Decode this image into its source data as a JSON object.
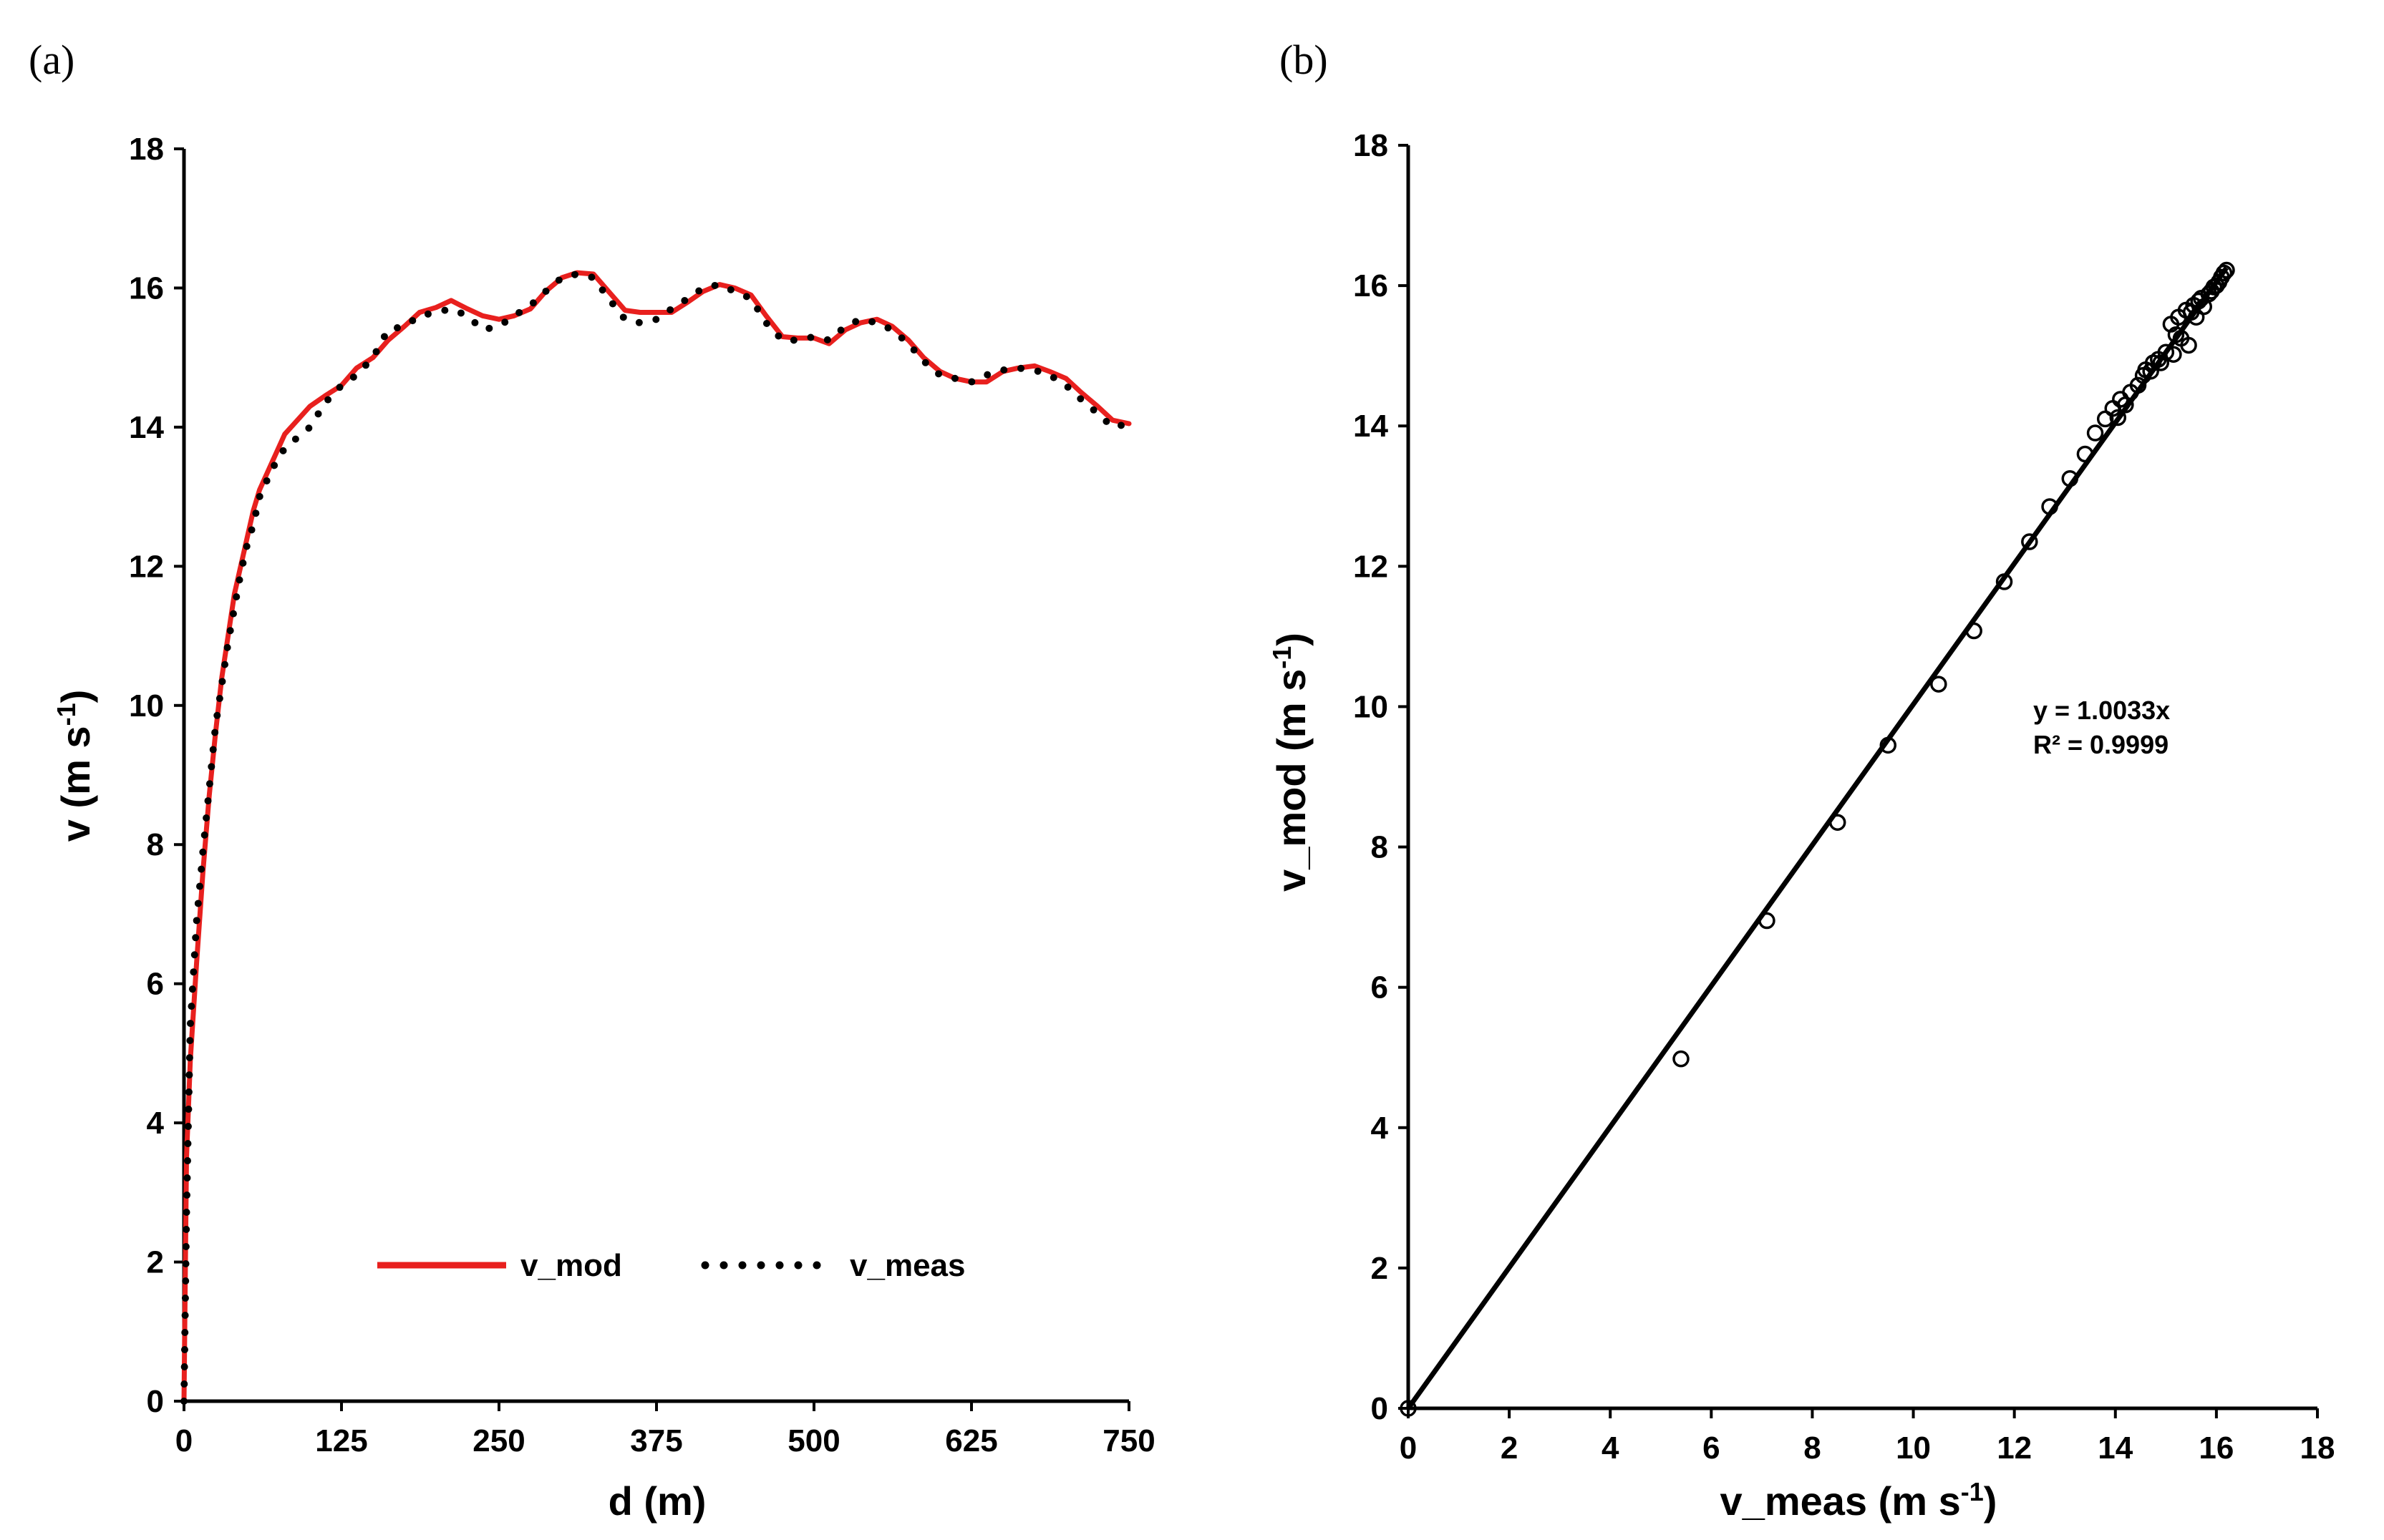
{
  "chart_data": [
    {
      "panel_label": "(a)",
      "type": "line",
      "xlabel": "d (m)",
      "ylabel": "v (m s-1)",
      "ylabel_main": "v (m s",
      "ylabel_sup": "-1",
      "ylabel_end": ")",
      "xlim": [
        0,
        750
      ],
      "ylim": [
        0,
        18
      ],
      "xticks": [
        0,
        125,
        250,
        375,
        500,
        625,
        750
      ],
      "yticks": [
        0,
        2,
        4,
        6,
        8,
        10,
        12,
        14,
        16,
        18
      ],
      "legend_position": "bottom-center",
      "series": [
        {
          "name": "v_mod",
          "style": "solid",
          "color": "#e8201e",
          "x": [
            0,
            2,
            5,
            10,
            15,
            20,
            25,
            30,
            35,
            40,
            45,
            50,
            55,
            60,
            70,
            80,
            90,
            100,
            112,
            125,
            137,
            150,
            162,
            175,
            187,
            200,
            212,
            225,
            237,
            250,
            262,
            275,
            287,
            300,
            312,
            325,
            337,
            350,
            362,
            375,
            387,
            400,
            412,
            425,
            437,
            450,
            462,
            475,
            487,
            500,
            512,
            525,
            537,
            550,
            562,
            575,
            587,
            600,
            612,
            625,
            637,
            650,
            662,
            675,
            687,
            700,
            712,
            725,
            737,
            750
          ],
          "y": [
            0,
            3.5,
            4.9,
            6.3,
            7.6,
            8.7,
            9.6,
            10.4,
            11.0,
            11.6,
            12.0,
            12.4,
            12.8,
            13.1,
            13.5,
            13.9,
            14.1,
            14.3,
            14.45,
            14.6,
            14.85,
            15.0,
            15.25,
            15.45,
            15.65,
            15.72,
            15.82,
            15.7,
            15.6,
            15.55,
            15.6,
            15.7,
            15.95,
            16.15,
            16.22,
            16.2,
            15.95,
            15.68,
            15.65,
            15.65,
            15.65,
            15.8,
            15.95,
            16.05,
            16.0,
            15.9,
            15.6,
            15.3,
            15.28,
            15.28,
            15.2,
            15.4,
            15.5,
            15.55,
            15.45,
            15.25,
            15.0,
            14.8,
            14.7,
            14.65,
            14.65,
            14.8,
            14.85,
            14.88,
            14.8,
            14.7,
            14.5,
            14.3,
            14.1,
            14.05
          ]
        },
        {
          "name": "v_meas",
          "style": "dotted",
          "color": "#000000",
          "x": [
            0,
            2,
            5,
            10,
            15,
            20,
            25,
            30,
            35,
            40,
            45,
            50,
            55,
            60,
            70,
            80,
            90,
            100,
            112,
            125,
            137,
            150,
            162,
            175,
            187,
            200,
            212,
            225,
            237,
            250,
            262,
            275,
            287,
            300,
            312,
            325,
            337,
            350,
            362,
            375,
            387,
            400,
            412,
            425,
            437,
            450,
            462,
            475,
            487,
            500,
            512,
            525,
            537,
            550,
            562,
            575,
            587,
            600,
            612,
            625,
            637,
            650,
            662,
            675,
            687,
            700,
            712,
            725,
            737,
            750
          ],
          "y": [
            0,
            2.7,
            5.4,
            6.9,
            7.9,
            8.8,
            9.7,
            10.3,
            10.9,
            11.4,
            11.9,
            12.3,
            12.6,
            13.0,
            13.4,
            13.7,
            13.85,
            14.0,
            14.35,
            14.6,
            14.75,
            15.0,
            15.4,
            15.45,
            15.6,
            15.65,
            15.7,
            15.6,
            15.4,
            15.45,
            15.6,
            15.75,
            15.95,
            16.15,
            16.2,
            16.15,
            15.85,
            15.55,
            15.5,
            15.55,
            15.7,
            15.85,
            16.0,
            16.05,
            15.95,
            15.85,
            15.5,
            15.25,
            15.25,
            15.3,
            15.25,
            15.45,
            15.55,
            15.5,
            15.4,
            15.2,
            14.95,
            14.75,
            14.7,
            14.65,
            14.75,
            14.82,
            14.85,
            14.82,
            14.75,
            14.6,
            14.4,
            14.2,
            14.0,
            14.05
          ]
        }
      ]
    },
    {
      "panel_label": "(b)",
      "type": "scatter",
      "xlabel": "v_meas (m s-1)",
      "xlabel_main": "v_meas (m s",
      "xlabel_sup": "-1",
      "xlabel_end": ")",
      "ylabel": "v_mod (m s-1)",
      "ylabel_main": "v_mod (m s",
      "ylabel_sup": "-1",
      "ylabel_end": ")",
      "xlim": [
        0,
        18
      ],
      "ylim": [
        0,
        18
      ],
      "xticks": [
        0,
        2,
        4,
        6,
        8,
        10,
        12,
        14,
        16,
        18
      ],
      "yticks": [
        0,
        2,
        4,
        6,
        8,
        10,
        12,
        14,
        16,
        18
      ],
      "trendline": {
        "slope": 1.0033,
        "x_range": [
          0,
          16.2
        ]
      },
      "annotation": {
        "equation": "y = 1.0033x",
        "r_squared": "R² = 0.9999"
      },
      "points": {
        "x": [
          0,
          5.4,
          7.1,
          8.5,
          9.5,
          10.5,
          11.2,
          11.8,
          12.3,
          12.7,
          13.1,
          13.4,
          13.6,
          13.8,
          13.95,
          14.05,
          14.1,
          14.2,
          14.3,
          14.45,
          14.55,
          14.6,
          14.7,
          14.75,
          14.85,
          14.9,
          15.0,
          15.1,
          15.15,
          15.2,
          15.25,
          15.3,
          15.4,
          15.45,
          15.5,
          15.55,
          15.6,
          15.65,
          15.7,
          15.75,
          15.85,
          15.9,
          15.95,
          16.0,
          16.05,
          16.1,
          16.15,
          16.2
        ],
        "y": [
          0,
          4.98,
          6.95,
          8.35,
          9.45,
          10.32,
          11.08,
          11.78,
          12.35,
          12.85,
          13.25,
          13.6,
          13.9,
          14.1,
          14.25,
          14.12,
          14.38,
          14.3,
          14.48,
          14.58,
          14.72,
          14.8,
          14.78,
          14.9,
          14.95,
          14.9,
          15.05,
          15.45,
          15.02,
          15.3,
          15.55,
          15.25,
          15.65,
          15.15,
          15.62,
          15.72,
          15.55,
          15.78,
          15.82,
          15.7,
          15.88,
          15.92,
          15.98,
          16.0,
          16.05,
          16.12,
          16.18,
          16.22
        ]
      }
    }
  ]
}
